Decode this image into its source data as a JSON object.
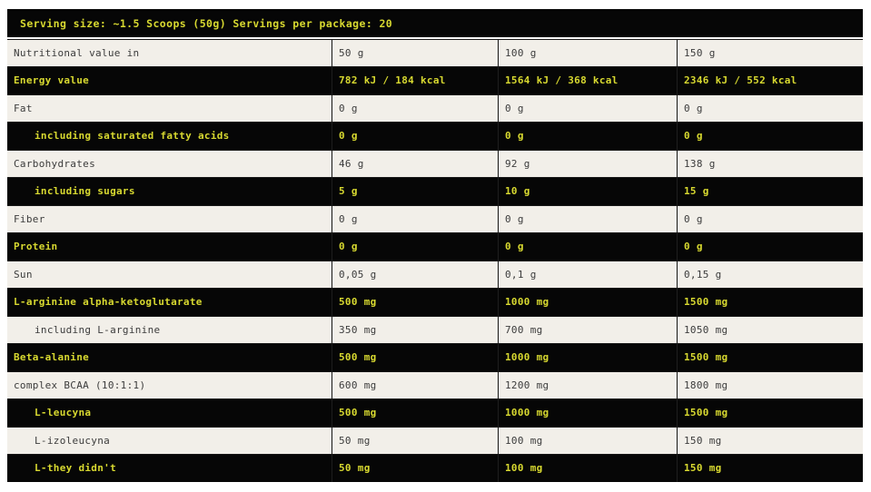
{
  "table": {
    "header": "Serving size: ~1.5 Scoops (50g) Servings per package: 20",
    "colors": {
      "accent_yellow": "#d8d930",
      "dark_row_bg": "#060606",
      "light_row_bg": "#f2efe9",
      "light_row_text": "#3c3c3c"
    },
    "rows": [
      {
        "label": "Nutritional value in",
        "values": [
          "50 g",
          "100 g",
          "150 g"
        ],
        "variant": "light",
        "indent": false
      },
      {
        "label": "Energy value",
        "values": [
          "782 kJ / 184 kcal",
          "1564 kJ / 368 kcal",
          "2346 kJ / 552 kcal"
        ],
        "variant": "dark",
        "indent": false
      },
      {
        "label": "Fat",
        "values": [
          "0 g",
          "0 g",
          "0 g"
        ],
        "variant": "light",
        "indent": false
      },
      {
        "label": "including saturated fatty acids",
        "values": [
          "0 g",
          "0 g",
          "0 g"
        ],
        "variant": "dark",
        "indent": true
      },
      {
        "label": "Carbohydrates",
        "values": [
          "46 g",
          "92 g",
          "138 g"
        ],
        "variant": "light",
        "indent": false
      },
      {
        "label": "including sugars",
        "values": [
          "5 g",
          "10 g",
          "15 g"
        ],
        "variant": "dark",
        "indent": true
      },
      {
        "label": "Fiber",
        "values": [
          "0 g",
          "0 g",
          "0 g"
        ],
        "variant": "light",
        "indent": false
      },
      {
        "label": "Protein",
        "values": [
          "0 g",
          "0 g",
          "0 g"
        ],
        "variant": "dark",
        "indent": false
      },
      {
        "label": "Sun",
        "values": [
          "0,05 g",
          "0,1 g",
          "0,15 g"
        ],
        "variant": "light",
        "indent": false
      },
      {
        "label": "L-arginine alpha-ketoglutarate",
        "values": [
          "500 mg",
          "1000 mg",
          "1500 mg"
        ],
        "variant": "dark",
        "indent": false
      },
      {
        "label": "including L-arginine",
        "values": [
          "350 mg",
          "700 mg",
          "1050 mg"
        ],
        "variant": "light",
        "indent": true
      },
      {
        "label": "Beta-alanine",
        "values": [
          "500 mg",
          "1000 mg",
          "1500 mg"
        ],
        "variant": "dark",
        "indent": false
      },
      {
        "label": "complex BCAA (10:1:1)",
        "values": [
          "600 mg",
          "1200 mg",
          "1800 mg"
        ],
        "variant": "light",
        "indent": false
      },
      {
        "label": "L-leucyna",
        "values": [
          "500 mg",
          "1000 mg",
          "1500 mg"
        ],
        "variant": "dark",
        "indent": true
      },
      {
        "label": "L-izoleucyna",
        "values": [
          "50 mg",
          "100 mg",
          "150 mg"
        ],
        "variant": "light",
        "indent": true
      },
      {
        "label": "L-they didn't",
        "values": [
          "50 mg",
          "100 mg",
          "150 mg"
        ],
        "variant": "dark",
        "indent": true
      }
    ]
  }
}
